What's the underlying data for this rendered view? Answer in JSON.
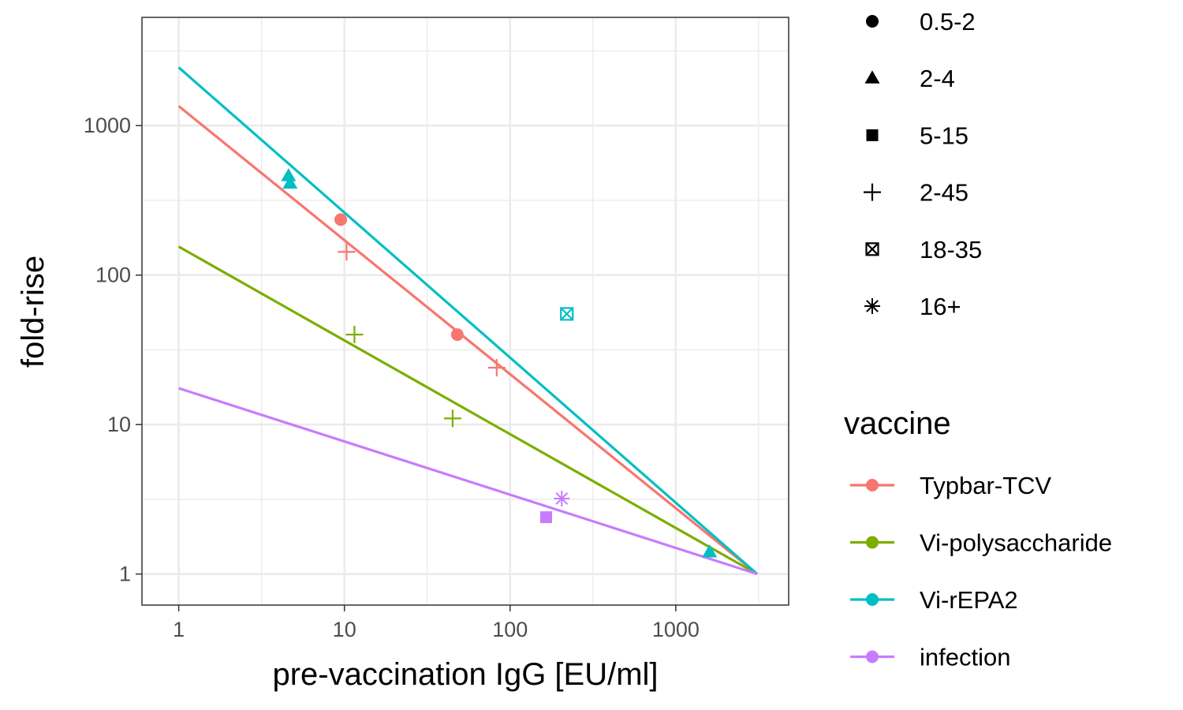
{
  "chart_data": {
    "type": "scatter",
    "title": "",
    "xlabel": "pre-vaccination IgG [EU/ml]",
    "ylabel": "fold-rise",
    "x_scale": "log10",
    "y_scale": "log10",
    "xlim": [
      0.6,
      4800
    ],
    "ylim": [
      0.62,
      5300
    ],
    "x_ticks": [
      1,
      10,
      100,
      1000
    ],
    "x_tick_labels": [
      "1",
      "10",
      "100",
      "1000"
    ],
    "y_ticks": [
      1,
      10,
      100,
      1000
    ],
    "y_tick_labels": [
      "1",
      "10",
      "100",
      "1000"
    ],
    "grid": true,
    "legend_position": "right",
    "shape_legend": {
      "items": [
        {
          "label": "0.5-2",
          "shape": "circle"
        },
        {
          "label": "2-4",
          "shape": "triangle"
        },
        {
          "label": "5-15",
          "shape": "square"
        },
        {
          "label": "2-45",
          "shape": "plus"
        },
        {
          "label": "18-35",
          "shape": "boxed-x"
        },
        {
          "label": "16+",
          "shape": "asterisk"
        }
      ]
    },
    "color_legend": {
      "title": "vaccine",
      "items": [
        {
          "label": "Typbar-TCV",
          "color": "#F8766D"
        },
        {
          "label": "Vi-polysaccharide",
          "color": "#7CAE00"
        },
        {
          "label": "Vi-rEPA2",
          "color": "#00BFC4"
        },
        {
          "label": "infection",
          "color": "#C77CFF"
        }
      ]
    },
    "series": [
      {
        "name": "Typbar-TCV",
        "color": "#F8766D",
        "line": {
          "x": [
            1,
            3100
          ],
          "y": [
            1350,
            1
          ]
        },
        "points": [
          {
            "x": 9.5,
            "y": 235,
            "shape": "circle"
          },
          {
            "x": 48,
            "y": 40,
            "shape": "circle"
          },
          {
            "x": 10.3,
            "y": 143,
            "shape": "plus"
          },
          {
            "x": 83,
            "y": 24,
            "shape": "plus"
          }
        ]
      },
      {
        "name": "Vi-polysaccharide",
        "color": "#7CAE00",
        "line": {
          "x": [
            1,
            3100
          ],
          "y": [
            155,
            1
          ]
        },
        "points": [
          {
            "x": 11.5,
            "y": 40,
            "shape": "plus"
          },
          {
            "x": 45,
            "y": 11,
            "shape": "plus"
          }
        ]
      },
      {
        "name": "Vi-rEPA2",
        "color": "#00BFC4",
        "line": {
          "x": [
            1,
            3100
          ],
          "y": [
            2450,
            1
          ]
        },
        "points": [
          {
            "x": 4.6,
            "y": 460,
            "shape": "triangle"
          },
          {
            "x": 4.7,
            "y": 410,
            "shape": "triangle"
          },
          {
            "x": 1600,
            "y": 1.4,
            "shape": "triangle"
          },
          {
            "x": 220,
            "y": 55,
            "shape": "boxed-x"
          }
        ]
      },
      {
        "name": "infection",
        "color": "#C77CFF",
        "line": {
          "x": [
            1,
            3100
          ],
          "y": [
            17.5,
            1
          ]
        },
        "points": [
          {
            "x": 165,
            "y": 2.4,
            "shape": "square"
          },
          {
            "x": 205,
            "y": 3.2,
            "shape": "asterisk"
          }
        ]
      }
    ]
  }
}
